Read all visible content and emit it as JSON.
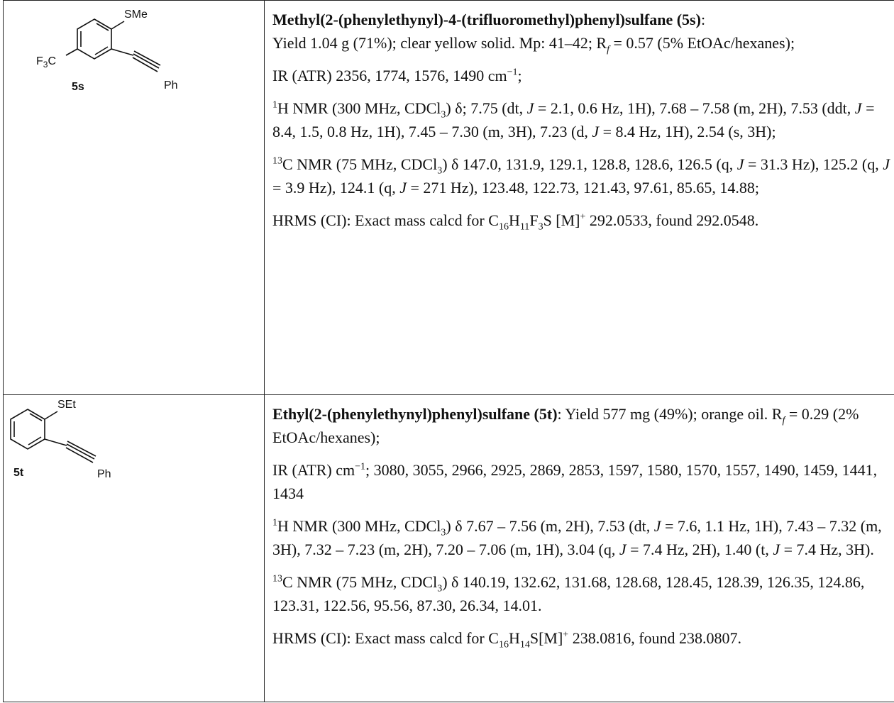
{
  "entries": [
    {
      "structure": {
        "sub_label": "SMe",
        "cf3_F": "F",
        "cf3_3": "3",
        "cf3_C": "C",
        "compound_id": "5s",
        "ph_label": "Ph"
      },
      "title_bold": "Methyl(2-(phenylethynyl)-4-(trifluoromethyl)phenyl)sulfane (5s)",
      "title_colon": ":",
      "yield_text": "Yield 1.04 g (71%); clear yellow solid. Mp: 41–42; R",
      "rf_sub": "f",
      "rf_rest": " = 0.57 (5% EtOAc/hexanes);",
      "ir": "IR (ATR) 2356, 1774, 1576, 1490 cm",
      "ir_sup": "−1",
      "ir_end": ";",
      "h_sup": "1",
      "h_a": "H NMR (300 MHz, CDCl",
      "h_b": ") δ; 7.75 (dt, ",
      "h_c": " = 2.1, 0.6 Hz, 1H), 7.68 – 7.58 (m, 2H), 7.53 (ddt, ",
      "h_d": " = 8.4, 1.5, 0.8 Hz, 1H), 7.45 – 7.30 (m, 3H), 7.23 (d, ",
      "h_e": " = 8.4 Hz, 1H), 2.54 (s, 3H);",
      "c_sup": "13",
      "c_a": "C NMR (75 MHz, CDCl",
      "c_b": ") δ 147.0, 131.9, 129.1, 128.8, 128.6, 126.5 (q, ",
      "c_c": " = 31.3 Hz), 125.2 (q, ",
      "c_d": " = 3.9 Hz), 124.1 (q, ",
      "c_e": " = 271 Hz), 123.48, 122.73, 121.43, 97.61, 85.65, 14.88;",
      "hrms_a": "HRMS (CI): Exact mass calcd for C",
      "hrms_f1": "16",
      "hrms_f2": "H",
      "hrms_f3": "11",
      "hrms_f4": "F",
      "hrms_f5": "3",
      "hrms_f6": "S [M]",
      "hrms_b": " 292.0533, found 292.0548."
    },
    {
      "structure": {
        "sub_label": "SEt",
        "compound_id": "5t",
        "ph_label": "Ph"
      },
      "title_bold": "Ethyl(2-(phenylethynyl)phenyl)sulfane (5t)",
      "title_colon": ":",
      "yield_text": " Yield 577 mg (49%); orange oil. R",
      "rf_sub": "f",
      "rf_rest": " = 0.29 (2% EtOAc/hexanes);",
      "ir": "IR (ATR) cm",
      "ir_sup": "−1",
      "ir_end": "; 3080, 3055, 2966, 2925, 2869, 2853, 1597, 1580, 1570, 1557, 1490, 1459, 1441, 1434",
      "h_sup": "1",
      "h_a": "H NMR (300 MHz, CDCl",
      "h_b": ") δ 7.67 – 7.56 (m, 2H), 7.53 (dt, ",
      "h_c": " = 7.6, 1.1 Hz, 1H), 7.43 – 7.32 (m, 3H), 7.32 – 7.23 (m, 2H), 7.20 – 7.06 (m, 1H), 3.04 (q, ",
      "h_d": " = 7.4 Hz, 2H), 1.40 (t, ",
      "h_e": " = 7.4 Hz, 3H).",
      "c_sup": "13",
      "c_a": "C NMR (75 MHz, CDCl",
      "c_b": ") δ 140.19, 132.62, 131.68, 128.68, 128.45, 128.39, 126.35, 124.86, 123.31, 122.56, 95.56, 87.30, 26.34, 14.01.",
      "hrms_a": "HRMS (CI): Exact mass calcd for C",
      "hrms_f1": "16",
      "hrms_f2": "H",
      "hrms_f3": "14",
      "hrms_f6": "S[M]",
      "hrms_b": " 238.0816, found 238.0807."
    }
  ],
  "common": {
    "sub3": "3",
    "j": "J",
    "plus": "+"
  }
}
